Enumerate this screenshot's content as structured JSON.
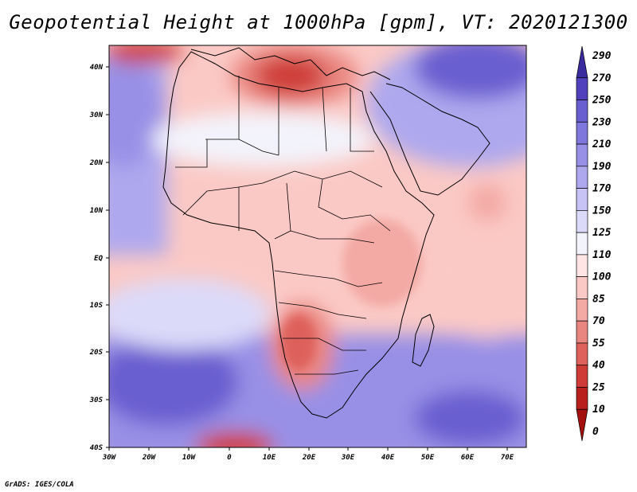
{
  "title": "Geopotential Height at 1000hPa [gpm], VT: 2020121300",
  "credit": "GrADS: IGES/COLA",
  "map": {
    "lon_labels": [
      "30W",
      "20W",
      "10W",
      "0",
      "10E",
      "20E",
      "30E",
      "40E",
      "50E",
      "60E",
      "70E"
    ],
    "lat_labels": [
      "40N",
      "30N",
      "20N",
      "10N",
      "EQ",
      "10S",
      "20S",
      "30S",
      "40S"
    ]
  },
  "colorbar": {
    "levels": [
      "290",
      "270",
      "250",
      "230",
      "210",
      "190",
      "170",
      "150",
      "125",
      "110",
      "100",
      "85",
      "70",
      "55",
      "40",
      "25",
      "10",
      "0"
    ],
    "colors": [
      "#3a2c9e",
      "#5141bd",
      "#6a5fd0",
      "#8077dc",
      "#9890e6",
      "#aea8ee",
      "#c7c3f5",
      "#dcdaf9",
      "#f3f3fb",
      "#ffe6e4",
      "#fbc9c5",
      "#f3a9a4",
      "#ea8680",
      "#de615b",
      "#cf3c38",
      "#b9201d",
      "#a3100e"
    ]
  },
  "features": {
    "ocean_label_none": ""
  }
}
